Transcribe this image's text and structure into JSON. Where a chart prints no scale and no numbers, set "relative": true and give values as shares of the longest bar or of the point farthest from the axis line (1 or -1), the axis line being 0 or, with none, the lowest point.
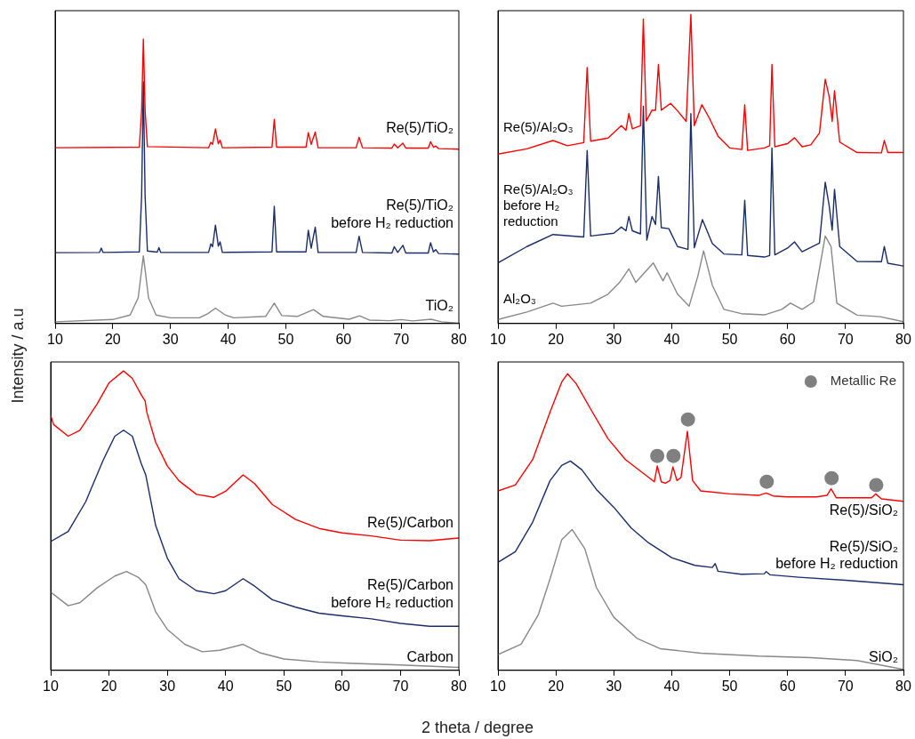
{
  "chart_data": [
    {
      "type": "line",
      "relative": true,
      "ylabel": "Intensity / a.u",
      "xlim": [
        10,
        80
      ],
      "xticks": [
        10,
        20,
        30,
        40,
        50,
        60,
        70,
        80
      ],
      "tick_labels": "x",
      "series": [
        {
          "name": "Re(5)/TiO₂",
          "color": "#ff0000",
          "x": [
            10,
            24.6,
            25.0,
            25.3,
            25.6,
            26.0,
            36.6,
            37.0,
            37.3,
            37.8,
            38.3,
            38.6,
            39.0,
            47.6,
            48.0,
            48.4,
            53.5,
            53.9,
            54.4,
            55.1,
            55.6,
            62.2,
            62.7,
            63.3,
            68.4,
            68.8,
            69.4,
            70.3,
            70.8,
            74.7,
            75.1,
            75.6,
            76.0,
            76.5,
            80
          ],
          "values": [
            0.618,
            0.62,
            0.75,
            1.0,
            0.75,
            0.622,
            0.618,
            0.637,
            0.63,
            0.684,
            0.632,
            0.645,
            0.618,
            0.62,
            0.718,
            0.62,
            0.62,
            0.671,
            0.63,
            0.673,
            0.618,
            0.618,
            0.655,
            0.618,
            0.617,
            0.631,
            0.618,
            0.634,
            0.617,
            0.617,
            0.639,
            0.62,
            0.624,
            0.615,
            0.613
          ]
        },
        {
          "name": "Re(5)/TiO₂ before H₂ reduction",
          "color": "#1a2d6b",
          "x": [
            10,
            17.7,
            18,
            18.3,
            24.6,
            25.0,
            25.3,
            25.6,
            26.0,
            27.7,
            28,
            28.3,
            36.6,
            37.0,
            37.3,
            37.8,
            38.3,
            38.6,
            39.0,
            47.6,
            48.0,
            48.4,
            53.5,
            53.9,
            54.4,
            55.1,
            55.6,
            62.2,
            62.7,
            63.3,
            68.4,
            68.8,
            69.4,
            70.3,
            70.8,
            74.7,
            75.1,
            75.6,
            76.0,
            76.5,
            80
          ],
          "values": [
            0.249,
            0.25,
            0.265,
            0.25,
            0.252,
            0.45,
            0.85,
            0.45,
            0.255,
            0.251,
            0.267,
            0.25,
            0.25,
            0.28,
            0.27,
            0.346,
            0.272,
            0.287,
            0.25,
            0.252,
            0.412,
            0.252,
            0.252,
            0.328,
            0.265,
            0.339,
            0.25,
            0.25,
            0.307,
            0.25,
            0.248,
            0.27,
            0.25,
            0.275,
            0.248,
            0.248,
            0.284,
            0.252,
            0.26,
            0.246,
            0.244
          ]
        },
        {
          "name": "TiO₂",
          "color": "#888888",
          "x": [
            10,
            20,
            23,
            24.4,
            25.3,
            26.2,
            27.5,
            30,
            35,
            36.5,
            37.8,
            39.5,
            41,
            46.5,
            48.0,
            49.3,
            52,
            54.8,
            56.5,
            61,
            62.8,
            64.5,
            68,
            70,
            72,
            75.2,
            77,
            80
          ],
          "values": [
            0.006,
            0.014,
            0.03,
            0.09,
            0.238,
            0.09,
            0.03,
            0.02,
            0.02,
            0.035,
            0.054,
            0.03,
            0.02,
            0.025,
            0.072,
            0.028,
            0.025,
            0.049,
            0.025,
            0.015,
            0.027,
            0.012,
            0.01,
            0.014,
            0.009,
            0.015,
            0.006,
            0.001
          ]
        }
      ]
    },
    {
      "type": "line",
      "relative": true,
      "xlim": [
        10,
        80
      ],
      "xticks": [
        10,
        20,
        30,
        40,
        50,
        60,
        70,
        80
      ],
      "tick_labels": "x",
      "series": [
        {
          "name": "Re(5)/Al₂O₃",
          "color": "#ff0000",
          "x": [
            10,
            15,
            19.5,
            22,
            24.8,
            25.4,
            26.0,
            29,
            31.3,
            32.1,
            32.6,
            33.2,
            34.6,
            35.1,
            35.6,
            36.6,
            37.2,
            37.7,
            38.2,
            39.8,
            41,
            42.5,
            43.3,
            43.9,
            45.2,
            46.5,
            48,
            50,
            52.1,
            52.6,
            53.1,
            56,
            56.9,
            57.3,
            57.8,
            60,
            61.2,
            62.5,
            64,
            65.5,
            66.5,
            67.2,
            67.7,
            68.1,
            69,
            72,
            76.2,
            76.7,
            77.3,
            80
          ],
          "values": [
            0.548,
            0.565,
            0.592,
            0.575,
            0.585,
            0.828,
            0.59,
            0.6,
            0.64,
            0.625,
            0.679,
            0.63,
            0.64,
            0.985,
            0.655,
            0.69,
            0.69,
            0.838,
            0.69,
            0.712,
            0.688,
            0.654,
            1.0,
            0.64,
            0.708,
            0.664,
            0.606,
            0.568,
            0.563,
            0.708,
            0.56,
            0.568,
            0.575,
            0.838,
            0.572,
            0.582,
            0.601,
            0.572,
            0.578,
            0.616,
            0.79,
            0.732,
            0.654,
            0.753,
            0.587,
            0.553,
            0.552,
            0.592,
            0.553,
            0.553
          ]
        },
        {
          "name": "Re(5)/Al₂O₃ before H₂ reduction",
          "color": "#1a2d6b",
          "x": [
            10,
            15,
            19.5,
            24.8,
            25.4,
            26.0,
            30,
            31.3,
            32.1,
            32.6,
            33.2,
            34.6,
            35.1,
            35.7,
            36.6,
            37.2,
            37.7,
            38.2,
            39.5,
            41,
            42.8,
            43.3,
            43.9,
            45.3,
            47,
            49,
            52.1,
            52.6,
            53.1,
            56,
            56.9,
            57.3,
            57.8,
            60,
            61.2,
            62.5,
            65.5,
            66.5,
            67.2,
            67.7,
            68.1,
            69,
            72,
            76.2,
            76.7,
            77.3,
            80
          ],
          "values": [
            0.196,
            0.249,
            0.288,
            0.28,
            0.56,
            0.283,
            0.292,
            0.312,
            0.3,
            0.346,
            0.3,
            0.29,
            0.703,
            0.27,
            0.346,
            0.32,
            0.476,
            0.31,
            0.307,
            0.249,
            0.24,
            0.679,
            0.245,
            0.336,
            0.259,
            0.225,
            0.222,
            0.399,
            0.22,
            0.215,
            0.22,
            0.568,
            0.222,
            0.244,
            0.264,
            0.232,
            0.26,
            0.457,
            0.379,
            0.302,
            0.434,
            0.249,
            0.201,
            0.2,
            0.249,
            0.195,
            0.186
          ]
        },
        {
          "name": "Al₂O₃",
          "color": "#888888",
          "x": [
            10,
            15,
            19.5,
            21,
            26,
            29,
            31,
            32.6,
            33.8,
            36.8,
            38.5,
            39.2,
            41,
            43,
            44.5,
            45.5,
            47,
            49,
            52,
            56,
            59,
            60.5,
            62.5,
            64.5,
            66.5,
            67.5,
            68.5,
            72,
            76,
            80
          ],
          "values": [
            0.013,
            0.037,
            0.066,
            0.056,
            0.066,
            0.095,
            0.133,
            0.177,
            0.133,
            0.196,
            0.138,
            0.164,
            0.095,
            0.056,
            0.153,
            0.235,
            0.124,
            0.046,
            0.032,
            0.028,
            0.046,
            0.066,
            0.046,
            0.07,
            0.283,
            0.249,
            0.066,
            0.027,
            0.022,
            0.006
          ]
        }
      ]
    },
    {
      "type": "line",
      "relative": true,
      "xlabel": "2 theta / degree",
      "xlim": [
        10,
        80
      ],
      "xticks": [
        10,
        20,
        30,
        40,
        50,
        60,
        70,
        80
      ],
      "tick_labels": "x",
      "series": [
        {
          "name": "Re(5)/Carbon",
          "color": "#ff0000",
          "x": [
            10,
            10.5,
            13,
            15,
            18,
            20,
            22.5,
            24,
            25.5,
            26.2,
            26.5,
            28,
            30,
            32,
            35,
            38,
            40,
            43,
            45,
            48,
            52,
            56,
            60,
            65,
            70,
            75,
            80
          ],
          "values": [
            0.851,
            0.821,
            0.782,
            0.802,
            0.891,
            0.96,
            1.0,
            0.975,
            0.921,
            0.9,
            0.861,
            0.762,
            0.683,
            0.633,
            0.588,
            0.578,
            0.598,
            0.653,
            0.623,
            0.554,
            0.504,
            0.474,
            0.459,
            0.449,
            0.435,
            0.433,
            0.442
          ]
        },
        {
          "name": "Re(5)/Carbon before H₂ reduction",
          "color": "#1a2d6b",
          "x": [
            10,
            13,
            16,
            19,
            21,
            22.5,
            24,
            25.5,
            26.3,
            28,
            30,
            32,
            35,
            38,
            40,
            43,
            45,
            48,
            52,
            56,
            60,
            65,
            70,
            75,
            80
          ],
          "values": [
            0.43,
            0.464,
            0.563,
            0.702,
            0.782,
            0.802,
            0.782,
            0.692,
            0.653,
            0.484,
            0.375,
            0.306,
            0.266,
            0.256,
            0.266,
            0.306,
            0.281,
            0.236,
            0.211,
            0.191,
            0.182,
            0.172,
            0.157,
            0.147,
            0.147
          ]
        },
        {
          "name": "Carbon",
          "color": "#888888",
          "x": [
            10,
            13,
            15,
            18,
            21,
            23,
            25,
            26.3,
            28,
            30,
            33,
            36,
            39,
            43,
            46,
            50,
            56,
            62,
            70,
            80
          ],
          "values": [
            0.261,
            0.216,
            0.226,
            0.276,
            0.315,
            0.33,
            0.311,
            0.286,
            0.196,
            0.137,
            0.087,
            0.062,
            0.067,
            0.087,
            0.058,
            0.038,
            0.028,
            0.023,
            0.018,
            0.01
          ]
        }
      ]
    },
    {
      "type": "line",
      "relative": true,
      "legend": "top right",
      "xlim": [
        10,
        80
      ],
      "xticks": [
        10,
        20,
        30,
        40,
        50,
        60,
        70,
        80
      ],
      "tick_labels": "x",
      "series": [
        {
          "name": "Re(5)/SiO₂",
          "color": "#ff0000",
          "x": [
            10,
            13,
            16,
            19,
            21,
            22,
            23.5,
            26,
            29,
            32,
            35,
            37,
            37.5,
            38.2,
            38.9,
            39.7,
            40.2,
            40.9,
            41.6,
            42.7,
            43.6,
            45,
            50,
            55,
            56.3,
            57.5,
            60,
            65,
            66.8,
            67.5,
            68.4,
            73,
            74.5,
            75.2,
            76.2,
            80
          ],
          "values": [
            0.605,
            0.625,
            0.711,
            0.871,
            0.972,
            1.0,
            0.967,
            0.881,
            0.781,
            0.711,
            0.666,
            0.636,
            0.689,
            0.636,
            0.631,
            0.64,
            0.686,
            0.64,
            0.65,
            0.806,
            0.64,
            0.605,
            0.595,
            0.59,
            0.598,
            0.588,
            0.585,
            0.585,
            0.59,
            0.612,
            0.582,
            0.582,
            0.582,
            0.595,
            0.578,
            0.57
          ]
        },
        {
          "name": "Re(5)/SiO₂ before H₂ reduction",
          "color": "#1a2d6b",
          "x": [
            10,
            13,
            16,
            19,
            21,
            22.5,
            24.5,
            27,
            30,
            33,
            36,
            40,
            44,
            47,
            47.5,
            48,
            52,
            56,
            56.3,
            57,
            62,
            70,
            80
          ],
          "values": [
            0.364,
            0.4,
            0.5,
            0.64,
            0.691,
            0.706,
            0.676,
            0.61,
            0.55,
            0.48,
            0.43,
            0.38,
            0.354,
            0.347,
            0.36,
            0.334,
            0.324,
            0.326,
            0.333,
            0.322,
            0.314,
            0.304,
            0.289
          ]
        },
        {
          "name": "SiO₂",
          "color": "#888888",
          "x": [
            10,
            14,
            17,
            19,
            21,
            22.8,
            25,
            27,
            30,
            34,
            38,
            45,
            55,
            64,
            72,
            80
          ],
          "values": [
            0.053,
            0.088,
            0.189,
            0.309,
            0.44,
            0.475,
            0.41,
            0.279,
            0.179,
            0.108,
            0.073,
            0.058,
            0.048,
            0.043,
            0.033,
            0.003
          ]
        },
        {
          "name": "Metallic Re",
          "type": "scatter",
          "marker": "circle",
          "color": "#808080",
          "x": [
            37.5,
            40.3,
            42.8,
            56.4,
            67.6,
            75.3
          ],
          "values": [
            0.723,
            0.723,
            0.846,
            0.636,
            0.648,
            0.625
          ]
        }
      ]
    }
  ]
}
